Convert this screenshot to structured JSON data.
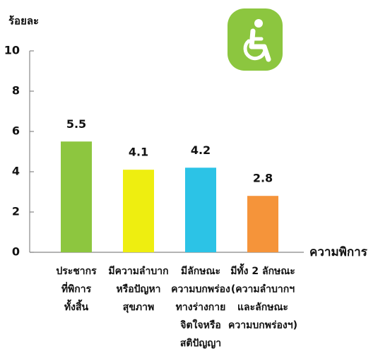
{
  "chart_data": {
    "type": "bar",
    "y_label": "ร้อยละ",
    "x_label": "ความพิการ",
    "categories": [
      "ประชากร\nที่พิการ\nทั้งสิ้น",
      "มีความลำบาก\nหรือปัญหา\nสุขภาพ",
      "มีลักษณะ\nความบกพร่อง\nทางร่างกาย\nจิตใจหรือ\nสติปัญญา",
      "มีทั้ง 2 ลักษณะ\n(ความลำบากฯ\nและลักษณะ\nความบกพร่องฯ)"
    ],
    "values": [
      5.5,
      4.1,
      4.2,
      2.8
    ],
    "colors": [
      "#8dc63f",
      "#eeee10",
      "#2cc3e6",
      "#f5943a"
    ],
    "ylim": [
      0,
      10
    ],
    "yticks": [
      0,
      2,
      4,
      6,
      8,
      10
    ],
    "grid": false
  }
}
